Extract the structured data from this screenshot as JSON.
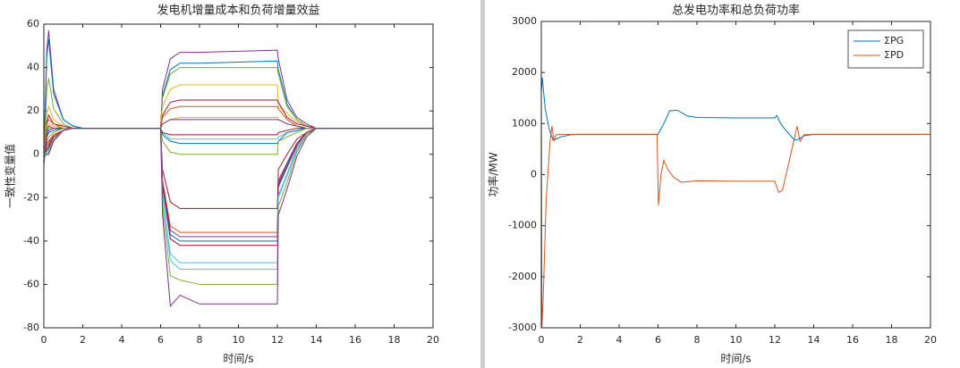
{
  "chart_data": [
    {
      "type": "line",
      "title": "发电机增量成本和负荷增量效益",
      "xlabel": "时间/s",
      "ylabel": "一致性变量值",
      "xlim": [
        0,
        20
      ],
      "ylim": [
        -80,
        60
      ],
      "xticks": [
        0,
        2,
        4,
        6,
        8,
        10,
        12,
        14,
        16,
        18,
        20
      ],
      "yticks": [
        -80,
        -60,
        -40,
        -20,
        0,
        20,
        40,
        60
      ],
      "x": [
        0,
        0.15,
        0.25,
        0.5,
        1,
        1.5,
        2,
        6,
        6.1,
        6.5,
        7,
        8,
        12,
        12.05,
        12.5,
        13,
        13.5,
        14,
        15,
        20
      ],
      "series": [
        {
          "color": "#7E2F8E",
          "values": [
            0,
            48,
            57,
            30,
            16,
            13,
            12,
            12,
            30,
            44,
            47,
            47,
            48,
            44,
            25,
            17,
            14,
            12,
            12,
            12
          ]
        },
        {
          "color": "#0072BD",
          "values": [
            -2,
            45,
            53,
            28,
            16,
            13,
            12,
            12,
            27,
            39,
            42,
            42,
            43,
            39,
            23,
            16,
            13,
            12,
            12,
            12
          ]
        },
        {
          "color": "#77AC30",
          "values": [
            -3,
            30,
            35,
            21,
            14,
            12,
            12,
            12,
            26,
            37,
            40,
            40,
            40,
            37,
            22,
            16,
            13,
            12,
            12,
            12
          ]
        },
        {
          "color": "#EDB120",
          "values": [
            -4,
            19,
            22,
            16,
            13,
            12,
            12,
            12,
            22,
            30,
            32,
            32,
            32,
            22,
            19,
            15,
            13,
            12,
            12,
            12
          ]
        },
        {
          "color": "#A2142F",
          "values": [
            -4,
            15,
            18,
            14,
            13,
            12,
            12,
            12,
            18,
            24,
            25,
            25,
            25,
            24,
            17,
            14,
            13,
            12,
            12,
            12
          ]
        },
        {
          "color": "#D95319",
          "values": [
            -3,
            14,
            16,
            14,
            12,
            12,
            12,
            12,
            17,
            21,
            22,
            22,
            22,
            21,
            16,
            13,
            12,
            12,
            12,
            12
          ]
        },
        {
          "color": "#EDB120",
          "values": [
            -5,
            12,
            14,
            13,
            12,
            12,
            12,
            12,
            14,
            16,
            17,
            17,
            17,
            16,
            14,
            13,
            12,
            12,
            12,
            12
          ]
        },
        {
          "color": "#7E2F8E",
          "values": [
            -2,
            11,
            13,
            12,
            12,
            12,
            12,
            12,
            14,
            16,
            16,
            16,
            16,
            16,
            14,
            13,
            12,
            12,
            12,
            12
          ]
        },
        {
          "color": "#4DBEEE",
          "values": [
            -2,
            10,
            12,
            12,
            12,
            12,
            12,
            12,
            10,
            7,
            7,
            7,
            7,
            8,
            10,
            11,
            12,
            12,
            12,
            12
          ]
        },
        {
          "color": "#0072BD",
          "values": [
            -5,
            8,
            10,
            11,
            12,
            12,
            12,
            12,
            9,
            6,
            5,
            5,
            5,
            6,
            10,
            11,
            12,
            12,
            12,
            12
          ]
        },
        {
          "color": "#A2142F",
          "values": [
            -4,
            9,
            11,
            12,
            12,
            12,
            12,
            12,
            10,
            9,
            9,
            9,
            9,
            10,
            11,
            12,
            12,
            12,
            12,
            12
          ]
        },
        {
          "color": "#77AC30",
          "values": [
            -3,
            6,
            8,
            10,
            12,
            12,
            12,
            12,
            6,
            1,
            0,
            0,
            0,
            6,
            8,
            10,
            12,
            12,
            12,
            12
          ]
        },
        {
          "color": "#A2142F",
          "values": [
            -1,
            5,
            6,
            9,
            11,
            12,
            12,
            12,
            -7,
            -22,
            -25,
            -25,
            -25,
            -7,
            0,
            7,
            10,
            12,
            12,
            12
          ]
        },
        {
          "color": "#D95319",
          "values": [
            0,
            4,
            5,
            9,
            11,
            12,
            12,
            12,
            -12,
            -33,
            -36,
            -36,
            -36,
            -12,
            -4,
            5,
            10,
            12,
            12,
            12
          ]
        },
        {
          "color": "#7E2F8E",
          "values": [
            -1,
            3,
            4,
            8,
            11,
            12,
            12,
            12,
            -13,
            -35,
            -38,
            -38,
            -38,
            -13,
            -4,
            5,
            10,
            12,
            12,
            12
          ]
        },
        {
          "color": "#0072BD",
          "values": [
            0,
            2,
            3,
            8,
            11,
            12,
            12,
            12,
            -14,
            -37,
            -40,
            -40,
            -40,
            -14,
            -5,
            4,
            10,
            12,
            12,
            12
          ]
        },
        {
          "color": "#A2142F",
          "values": [
            -1,
            2,
            3,
            8,
            11,
            12,
            12,
            12,
            -15,
            -39,
            -42,
            -42,
            -42,
            -15,
            -6,
            4,
            10,
            12,
            12,
            12
          ]
        },
        {
          "color": "#4DBEEE",
          "values": [
            0,
            1,
            2,
            7,
            11,
            12,
            12,
            12,
            -19,
            -46,
            -50,
            -50,
            -50,
            -19,
            -9,
            3,
            9,
            12,
            12,
            12
          ]
        },
        {
          "color": "#4DBEEE",
          "values": [
            -1,
            1,
            2,
            7,
            11,
            12,
            12,
            12,
            -20,
            -49,
            -53,
            -53,
            -53,
            -20,
            -10,
            2,
            9,
            12,
            12,
            12
          ]
        },
        {
          "color": "#77AC30",
          "values": [
            0,
            0,
            1,
            7,
            11,
            12,
            12,
            12,
            -24,
            -56,
            -58,
            -60,
            -60,
            -24,
            -13,
            1,
            9,
            12,
            12,
            12
          ]
        },
        {
          "color": "#7E2F8E",
          "values": [
            -1,
            0,
            0,
            6,
            11,
            12,
            12,
            12,
            -28,
            -70,
            -65,
            -69,
            -69,
            -28,
            -16,
            -1,
            8,
            12,
            12,
            12
          ]
        }
      ]
    },
    {
      "type": "line",
      "title": "总发电功率和总负荷功率",
      "xlabel": "时间/s",
      "ylabel": "功率/MW",
      "xlim": [
        0,
        20
      ],
      "ylim": [
        -3000,
        3000
      ],
      "xticks": [
        0,
        2,
        4,
        6,
        8,
        10,
        12,
        14,
        16,
        18,
        20
      ],
      "yticks": [
        -3000,
        -2000,
        -1000,
        0,
        1000,
        2000,
        3000
      ],
      "legend": "northeast",
      "series": [
        {
          "name": "ΣPG",
          "color": "#0072BD",
          "x": [
            0,
            0.05,
            0.2,
            0.4,
            0.6,
            0.8,
            1,
            1.5,
            2,
            3,
            5.95,
            6,
            6.3,
            6.6,
            7,
            7.5,
            8,
            10,
            12,
            12.1,
            12.3,
            12.5,
            13,
            13.2,
            13.5,
            14,
            15,
            20
          ],
          "values": [
            1600,
            1900,
            1300,
            900,
            680,
            700,
            740,
            780,
            790,
            790,
            790,
            790,
            1000,
            1250,
            1260,
            1150,
            1120,
            1110,
            1110,
            1160,
            1000,
            900,
            680,
            690,
            760,
            790,
            790,
            790
          ]
        },
        {
          "name": "ΣPD",
          "color": "#D95319",
          "x": [
            0,
            0.03,
            0.1,
            0.25,
            0.45,
            0.55,
            0.65,
            0.75,
            1,
            2,
            5.95,
            6.02,
            6.15,
            6.3,
            6.5,
            6.8,
            7.2,
            8,
            10,
            12,
            12.2,
            12.4,
            12.7,
            13,
            13.15,
            13.3,
            13.5,
            14,
            20
          ],
          "values": [
            2050,
            -3000,
            -2400,
            -500,
            650,
            950,
            650,
            780,
            790,
            790,
            790,
            -600,
            0,
            280,
            100,
            -50,
            -150,
            -120,
            -130,
            -130,
            -350,
            -300,
            200,
            700,
            950,
            650,
            780,
            790,
            790
          ]
        }
      ]
    }
  ]
}
